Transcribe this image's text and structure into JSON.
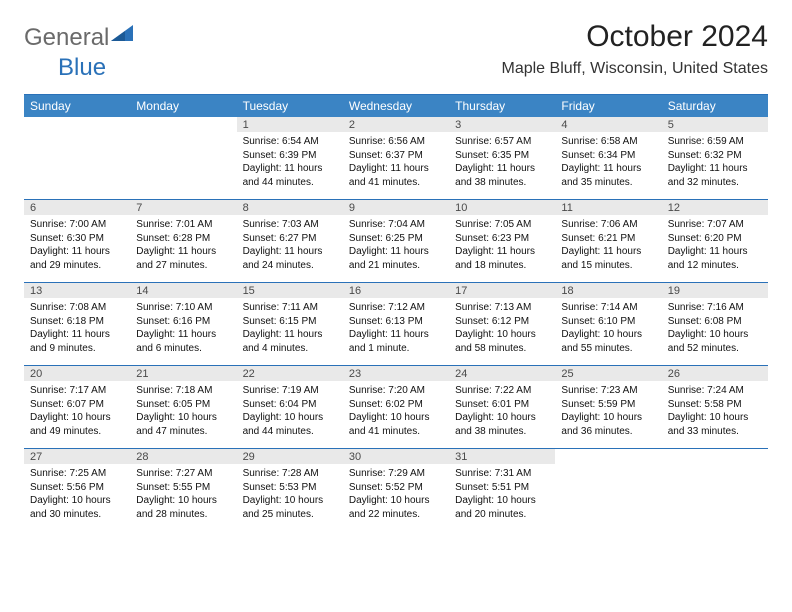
{
  "logo": {
    "part1": "General",
    "part2": "Blue"
  },
  "title": "October 2024",
  "location": "Maple Bluff, Wisconsin, United States",
  "colors": {
    "header_bg": "#3b84c4",
    "header_border": "#2a71b8",
    "daynum_bg": "#e9e9e9",
    "logo_gray": "#6a6a6a",
    "logo_blue": "#2a71b8"
  },
  "day_names": [
    "Sunday",
    "Monday",
    "Tuesday",
    "Wednesday",
    "Thursday",
    "Friday",
    "Saturday"
  ],
  "weeks": [
    [
      {
        "n": "",
        "sr": "",
        "ss": "",
        "dl": ""
      },
      {
        "n": "",
        "sr": "",
        "ss": "",
        "dl": ""
      },
      {
        "n": "1",
        "sr": "Sunrise: 6:54 AM",
        "ss": "Sunset: 6:39 PM",
        "dl": "Daylight: 11 hours and 44 minutes."
      },
      {
        "n": "2",
        "sr": "Sunrise: 6:56 AM",
        "ss": "Sunset: 6:37 PM",
        "dl": "Daylight: 11 hours and 41 minutes."
      },
      {
        "n": "3",
        "sr": "Sunrise: 6:57 AM",
        "ss": "Sunset: 6:35 PM",
        "dl": "Daylight: 11 hours and 38 minutes."
      },
      {
        "n": "4",
        "sr": "Sunrise: 6:58 AM",
        "ss": "Sunset: 6:34 PM",
        "dl": "Daylight: 11 hours and 35 minutes."
      },
      {
        "n": "5",
        "sr": "Sunrise: 6:59 AM",
        "ss": "Sunset: 6:32 PM",
        "dl": "Daylight: 11 hours and 32 minutes."
      }
    ],
    [
      {
        "n": "6",
        "sr": "Sunrise: 7:00 AM",
        "ss": "Sunset: 6:30 PM",
        "dl": "Daylight: 11 hours and 29 minutes."
      },
      {
        "n": "7",
        "sr": "Sunrise: 7:01 AM",
        "ss": "Sunset: 6:28 PM",
        "dl": "Daylight: 11 hours and 27 minutes."
      },
      {
        "n": "8",
        "sr": "Sunrise: 7:03 AM",
        "ss": "Sunset: 6:27 PM",
        "dl": "Daylight: 11 hours and 24 minutes."
      },
      {
        "n": "9",
        "sr": "Sunrise: 7:04 AM",
        "ss": "Sunset: 6:25 PM",
        "dl": "Daylight: 11 hours and 21 minutes."
      },
      {
        "n": "10",
        "sr": "Sunrise: 7:05 AM",
        "ss": "Sunset: 6:23 PM",
        "dl": "Daylight: 11 hours and 18 minutes."
      },
      {
        "n": "11",
        "sr": "Sunrise: 7:06 AM",
        "ss": "Sunset: 6:21 PM",
        "dl": "Daylight: 11 hours and 15 minutes."
      },
      {
        "n": "12",
        "sr": "Sunrise: 7:07 AM",
        "ss": "Sunset: 6:20 PM",
        "dl": "Daylight: 11 hours and 12 minutes."
      }
    ],
    [
      {
        "n": "13",
        "sr": "Sunrise: 7:08 AM",
        "ss": "Sunset: 6:18 PM",
        "dl": "Daylight: 11 hours and 9 minutes."
      },
      {
        "n": "14",
        "sr": "Sunrise: 7:10 AM",
        "ss": "Sunset: 6:16 PM",
        "dl": "Daylight: 11 hours and 6 minutes."
      },
      {
        "n": "15",
        "sr": "Sunrise: 7:11 AM",
        "ss": "Sunset: 6:15 PM",
        "dl": "Daylight: 11 hours and 4 minutes."
      },
      {
        "n": "16",
        "sr": "Sunrise: 7:12 AM",
        "ss": "Sunset: 6:13 PM",
        "dl": "Daylight: 11 hours and 1 minute."
      },
      {
        "n": "17",
        "sr": "Sunrise: 7:13 AM",
        "ss": "Sunset: 6:12 PM",
        "dl": "Daylight: 10 hours and 58 minutes."
      },
      {
        "n": "18",
        "sr": "Sunrise: 7:14 AM",
        "ss": "Sunset: 6:10 PM",
        "dl": "Daylight: 10 hours and 55 minutes."
      },
      {
        "n": "19",
        "sr": "Sunrise: 7:16 AM",
        "ss": "Sunset: 6:08 PM",
        "dl": "Daylight: 10 hours and 52 minutes."
      }
    ],
    [
      {
        "n": "20",
        "sr": "Sunrise: 7:17 AM",
        "ss": "Sunset: 6:07 PM",
        "dl": "Daylight: 10 hours and 49 minutes."
      },
      {
        "n": "21",
        "sr": "Sunrise: 7:18 AM",
        "ss": "Sunset: 6:05 PM",
        "dl": "Daylight: 10 hours and 47 minutes."
      },
      {
        "n": "22",
        "sr": "Sunrise: 7:19 AM",
        "ss": "Sunset: 6:04 PM",
        "dl": "Daylight: 10 hours and 44 minutes."
      },
      {
        "n": "23",
        "sr": "Sunrise: 7:20 AM",
        "ss": "Sunset: 6:02 PM",
        "dl": "Daylight: 10 hours and 41 minutes."
      },
      {
        "n": "24",
        "sr": "Sunrise: 7:22 AM",
        "ss": "Sunset: 6:01 PM",
        "dl": "Daylight: 10 hours and 38 minutes."
      },
      {
        "n": "25",
        "sr": "Sunrise: 7:23 AM",
        "ss": "Sunset: 5:59 PM",
        "dl": "Daylight: 10 hours and 36 minutes."
      },
      {
        "n": "26",
        "sr": "Sunrise: 7:24 AM",
        "ss": "Sunset: 5:58 PM",
        "dl": "Daylight: 10 hours and 33 minutes."
      }
    ],
    [
      {
        "n": "27",
        "sr": "Sunrise: 7:25 AM",
        "ss": "Sunset: 5:56 PM",
        "dl": "Daylight: 10 hours and 30 minutes."
      },
      {
        "n": "28",
        "sr": "Sunrise: 7:27 AM",
        "ss": "Sunset: 5:55 PM",
        "dl": "Daylight: 10 hours and 28 minutes."
      },
      {
        "n": "29",
        "sr": "Sunrise: 7:28 AM",
        "ss": "Sunset: 5:53 PM",
        "dl": "Daylight: 10 hours and 25 minutes."
      },
      {
        "n": "30",
        "sr": "Sunrise: 7:29 AM",
        "ss": "Sunset: 5:52 PM",
        "dl": "Daylight: 10 hours and 22 minutes."
      },
      {
        "n": "31",
        "sr": "Sunrise: 7:31 AM",
        "ss": "Sunset: 5:51 PM",
        "dl": "Daylight: 10 hours and 20 minutes."
      },
      {
        "n": "",
        "sr": "",
        "ss": "",
        "dl": ""
      },
      {
        "n": "",
        "sr": "",
        "ss": "",
        "dl": ""
      }
    ]
  ]
}
